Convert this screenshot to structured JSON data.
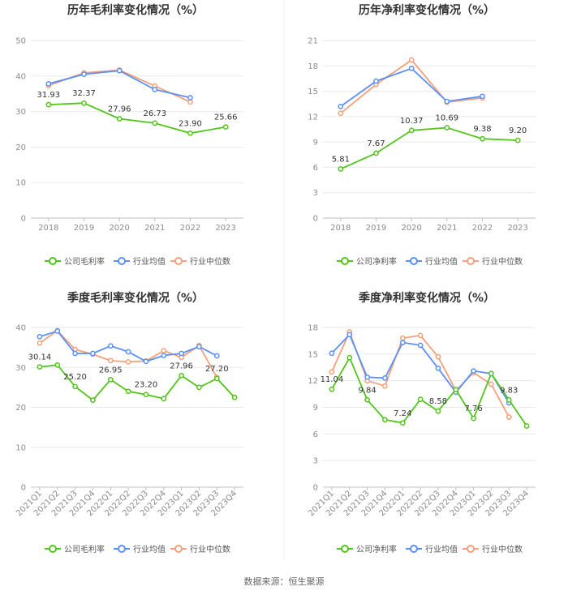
{
  "colors": {
    "company": "#52c41a",
    "industry_avg": "#5b8ff9",
    "industry_median": "#f4a07a"
  },
  "legend": {
    "gross": [
      "公司毛利率",
      "行业均值",
      "行业中位数"
    ],
    "net": [
      "公司净利率",
      "行业均值",
      "行业中位数"
    ]
  },
  "source": "数据来源：恒生聚源",
  "chart_data": [
    {
      "type": "line",
      "title": "历年毛利率变化情况（%）",
      "categories": [
        "2018",
        "2019",
        "2020",
        "2021",
        "2022",
        "2023"
      ],
      "ylim": [
        0,
        50
      ],
      "yticks": [
        0,
        10,
        20,
        30,
        40,
        50
      ],
      "series": [
        {
          "name": "公司毛利率",
          "values": [
            31.93,
            32.37,
            27.96,
            26.73,
            23.9,
            25.66
          ]
        },
        {
          "name": "行业均值",
          "values": [
            37.8,
            40.5,
            41.5,
            36.2,
            33.9,
            null
          ]
        },
        {
          "name": "行业中位数",
          "values": [
            37.3,
            40.9,
            41.7,
            37.2,
            32.7,
            null
          ]
        }
      ],
      "data_labels": [
        "31.93",
        "32.37",
        "27.96",
        "26.73",
        "23.90",
        "25.66"
      ]
    },
    {
      "type": "line",
      "title": "历年净利率变化情况（%）",
      "categories": [
        "2018",
        "2019",
        "2020",
        "2021",
        "2022",
        "2023"
      ],
      "ylim": [
        0,
        21
      ],
      "yticks": [
        0,
        3,
        6,
        9,
        12,
        15,
        18,
        21
      ],
      "series": [
        {
          "name": "公司净利率",
          "values": [
            5.81,
            7.67,
            10.37,
            10.69,
            9.38,
            9.2
          ]
        },
        {
          "name": "行业均值",
          "values": [
            13.2,
            16.2,
            17.7,
            13.8,
            14.4,
            null
          ]
        },
        {
          "name": "行业中位数",
          "values": [
            12.4,
            15.8,
            18.7,
            13.7,
            14.2,
            null
          ]
        }
      ],
      "data_labels": [
        "5.81",
        "7.67",
        "10.37",
        "10.69",
        "9.38",
        "9.20"
      ]
    },
    {
      "type": "line",
      "title": "季度毛利率变化情况（%）",
      "categories": [
        "2021Q1",
        "2021Q2",
        "2021Q3",
        "2021Q4",
        "2022Q1",
        "2022Q2",
        "2022Q3",
        "2022Q4",
        "2023Q1",
        "2023Q2",
        "2023Q3",
        "2023Q4"
      ],
      "ylim": [
        0,
        40
      ],
      "yticks": [
        0,
        10,
        20,
        30,
        40
      ],
      "series": [
        {
          "name": "公司毛利率",
          "values": [
            30.14,
            30.6,
            25.2,
            21.8,
            26.95,
            24.0,
            23.2,
            22.2,
            27.96,
            25.0,
            27.2,
            22.5
          ]
        },
        {
          "name": "行业均值",
          "values": [
            37.7,
            39.1,
            33.5,
            33.5,
            35.4,
            33.9,
            31.5,
            33.0,
            33.5,
            35.2,
            32.9,
            null
          ]
        },
        {
          "name": "行业中位数",
          "values": [
            36.1,
            39.2,
            34.5,
            33.3,
            31.7,
            31.4,
            31.6,
            34.2,
            32.5,
            35.5,
            27.5,
            null
          ]
        }
      ],
      "data_labels": [
        "30.14",
        "",
        "25.20",
        "",
        "26.95",
        "",
        "23.20",
        "",
        "27.96",
        "",
        "27.20",
        ""
      ]
    },
    {
      "type": "line",
      "title": "季度净利率变化情况（%）",
      "categories": [
        "2021Q1",
        "2021Q2",
        "2021Q3",
        "2021Q4",
        "2022Q1",
        "2022Q2",
        "2022Q3",
        "2022Q4",
        "2023Q1",
        "2023Q2",
        "2023Q3",
        "2023Q4"
      ],
      "ylim": [
        0,
        18
      ],
      "yticks": [
        0,
        3,
        6,
        9,
        12,
        15,
        18
      ],
      "series": [
        {
          "name": "公司净利率",
          "values": [
            11.04,
            14.6,
            9.84,
            7.6,
            7.24,
            9.9,
            8.58,
            11.0,
            7.76,
            12.8,
            9.83,
            6.9
          ]
        },
        {
          "name": "行业均值",
          "values": [
            15.1,
            17.2,
            12.4,
            12.3,
            16.3,
            16.0,
            13.4,
            10.7,
            13.1,
            12.8,
            9.5,
            null
          ]
        },
        {
          "name": "行业中位数",
          "values": [
            13.0,
            17.5,
            12.0,
            11.4,
            16.8,
            17.1,
            14.7,
            10.9,
            12.9,
            11.6,
            7.9,
            null
          ]
        }
      ],
      "data_labels": [
        "11.04",
        "",
        "9.84",
        "",
        "7.24",
        "",
        "8.58",
        "",
        "7.76",
        "",
        "9.83",
        ""
      ]
    }
  ]
}
